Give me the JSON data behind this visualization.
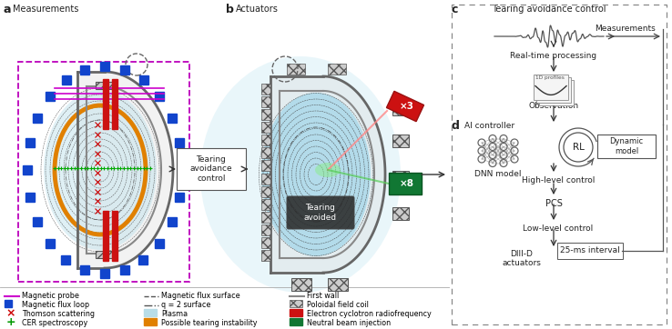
{
  "bg_color": "#ffffff",
  "panel_a_label": "a",
  "panel_b_label": "b",
  "panel_c_label": "c",
  "panel_d_label": "d",
  "panel_a_title": "Measurements",
  "panel_b_title": "Actuators",
  "panel_c_title": "Tearing avoidance control",
  "tearing_avoidance_box_text": "Tearing\navoidance\ncontrol",
  "tearing_avoided_text": "Tearing\navoided",
  "measurements_label": "Measurements",
  "real_time_text": "Real-time processing",
  "observation_text": "Observation",
  "ai_controller_text": "AI controller",
  "dnn_model_text": "DNN model",
  "rl_text": "RL",
  "dynamic_model_text": "Dynamic\nmodel",
  "high_level_text": "High-level control",
  "pcs_text": "PCS",
  "low_level_text": "Low-level control",
  "diii_text": "DIII-D\nactuators",
  "interval_text": "25-ms interval",
  "x3_text": "×3",
  "x8_text": "×8",
  "profiles_label": "1D profiles"
}
